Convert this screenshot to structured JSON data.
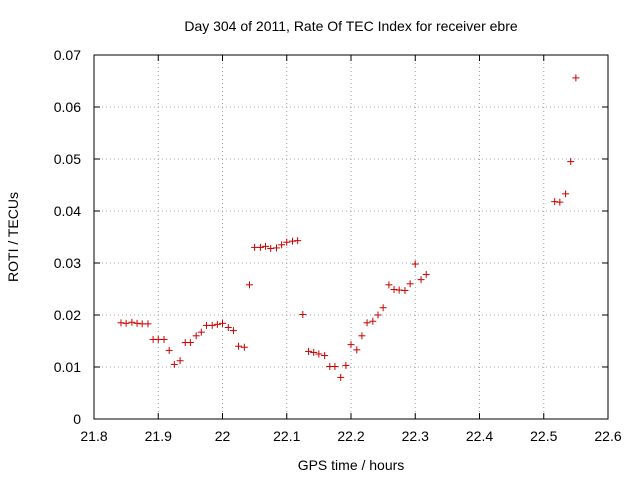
{
  "chart_data": {
    "type": "scatter",
    "title": "Day 304 of 2011, Rate Of TEC Index for receiver ebre",
    "xlabel": "GPS time / hours",
    "ylabel": "ROTI / TECUs",
    "xlim": [
      21.8,
      22.6
    ],
    "ylim": [
      0,
      0.07
    ],
    "xticks": [
      21.8,
      21.9,
      22.0,
      22.1,
      22.2,
      22.3,
      22.4,
      22.5,
      22.6
    ],
    "xtick_labels": [
      "21.8",
      "21.9",
      "22",
      "22.1",
      "22.2",
      "22.3",
      "22.4",
      "22.5",
      "22.6"
    ],
    "yticks": [
      0,
      0.01,
      0.02,
      0.03,
      0.04,
      0.05,
      0.06,
      0.07
    ],
    "ytick_labels": [
      "0",
      "0.01",
      "0.02",
      "0.03",
      "0.04",
      "0.05",
      "0.06",
      "0.07"
    ],
    "grid": true,
    "marker": "+",
    "color": "#cc0000",
    "series": [
      {
        "name": "ROTI",
        "x": [
          21.842,
          21.85,
          21.859,
          21.867,
          21.875,
          21.884,
          21.892,
          21.9,
          21.909,
          21.917,
          21.925,
          21.934,
          21.942,
          21.95,
          21.959,
          21.967,
          21.975,
          21.984,
          21.992,
          22.0,
          22.009,
          22.017,
          22.025,
          22.034,
          22.042,
          22.05,
          22.059,
          22.067,
          22.075,
          22.084,
          22.092,
          22.1,
          22.109,
          22.117,
          22.125,
          22.134,
          22.142,
          22.15,
          22.159,
          22.167,
          22.175,
          22.184,
          22.192,
          22.2,
          22.209,
          22.217,
          22.225,
          22.234,
          22.242,
          22.25,
          22.259,
          22.267,
          22.275,
          22.284,
          22.292,
          22.3,
          22.309,
          22.317,
          22.517,
          22.525,
          22.534,
          22.542,
          22.55
        ],
        "y": [
          0.0185,
          0.0184,
          0.0186,
          0.0184,
          0.0183,
          0.0183,
          0.0153,
          0.0153,
          0.0153,
          0.0132,
          0.0105,
          0.0112,
          0.0147,
          0.0147,
          0.016,
          0.0167,
          0.018,
          0.018,
          0.0182,
          0.0184,
          0.0176,
          0.017,
          0.014,
          0.0138,
          0.0258,
          0.033,
          0.033,
          0.0332,
          0.0328,
          0.0329,
          0.0335,
          0.034,
          0.0342,
          0.0343,
          0.0201,
          0.013,
          0.0128,
          0.0125,
          0.0122,
          0.0101,
          0.0101,
          0.008,
          0.0103,
          0.0143,
          0.0133,
          0.016,
          0.0185,
          0.0188,
          0.02,
          0.0214,
          0.0258,
          0.0249,
          0.0248,
          0.0247,
          0.026,
          0.0298,
          0.0268,
          0.0278,
          0.0418,
          0.0417,
          0.0433,
          0.0495,
          0.0656
        ]
      }
    ]
  }
}
